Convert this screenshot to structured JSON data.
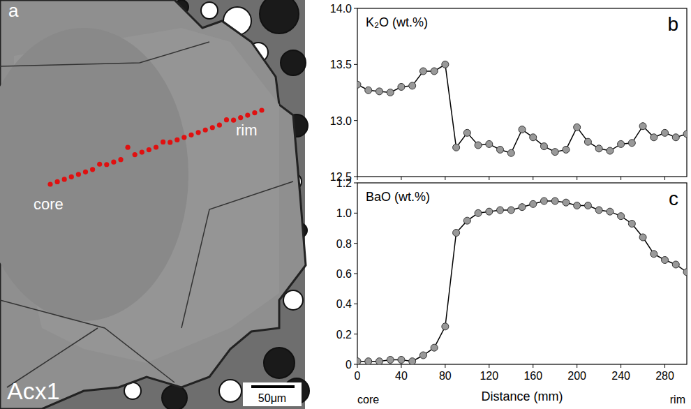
{
  "chart_data": [
    {
      "type": "line",
      "title": "K₂O (wt.%)",
      "letter": "b",
      "tick_labels": "y",
      "grid": false,
      "color": "#999999",
      "marker": "circle",
      "x": [
        0,
        10,
        20,
        30,
        40,
        50,
        60,
        70,
        80,
        90,
        100,
        110,
        120,
        130,
        140,
        150,
        160,
        170,
        180,
        190,
        200,
        210,
        220,
        230,
        240,
        250,
        260,
        270,
        280,
        290,
        300
      ],
      "values": [
        13.32,
        13.27,
        13.26,
        13.25,
        13.3,
        13.31,
        13.44,
        13.44,
        13.5,
        12.76,
        12.89,
        12.78,
        12.79,
        12.74,
        12.71,
        12.92,
        12.85,
        12.77,
        12.72,
        12.74,
        12.94,
        12.81,
        12.75,
        12.73,
        12.79,
        12.8,
        12.95,
        12.85,
        12.89,
        12.85,
        12.88
      ],
      "xlim": [
        0,
        300
      ],
      "xticks": [
        0,
        40,
        80,
        120,
        160,
        200,
        240,
        280
      ],
      "ylim": [
        12.5,
        14.0
      ],
      "yticks": [
        12.5,
        {
          "value": 13,
          "label": "13.0"
        },
        13.5,
        {
          "value": 14,
          "label": "14.0"
        }
      ]
    },
    {
      "type": "line",
      "title": "BaO (wt.%)",
      "letter": "c",
      "grid": false,
      "color": "#999999",
      "marker": "circle",
      "x_label": "Distance (mm)",
      "x_start_label": "core",
      "x_end_label": "rim",
      "x": [
        0,
        10,
        20,
        30,
        40,
        50,
        60,
        70,
        80,
        90,
        100,
        110,
        120,
        130,
        140,
        150,
        160,
        170,
        180,
        190,
        200,
        210,
        220,
        230,
        240,
        250,
        260,
        270,
        280,
        290,
        300
      ],
      "values": [
        0.02,
        0.02,
        0.02,
        0.03,
        0.03,
        0.02,
        0.06,
        0.11,
        0.25,
        0.87,
        0.95,
        1.0,
        1.01,
        1.02,
        1.02,
        1.04,
        1.06,
        1.08,
        1.08,
        1.07,
        1.05,
        1.05,
        1.02,
        1.01,
        0.98,
        0.93,
        0.84,
        0.73,
        0.69,
        0.66,
        0.61
      ],
      "xlim": [
        0,
        300
      ],
      "xticks": [
        0,
        40,
        80,
        120,
        160,
        200,
        240,
        280
      ],
      "ylim": [
        0,
        1.2
      ],
      "yticks": [
        0,
        0.2,
        0.4,
        0.6,
        0.8,
        {
          "value": 1,
          "label": "1.0"
        },
        1.2
      ]
    }
  ],
  "image": {
    "letter": "a",
    "sample": "Acx1",
    "core_label": "core",
    "rim_label": "rim",
    "scale_bar": "50μm"
  }
}
